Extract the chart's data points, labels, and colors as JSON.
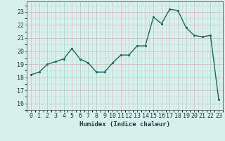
{
  "x": [
    0,
    1,
    2,
    3,
    4,
    5,
    6,
    7,
    8,
    9,
    10,
    11,
    12,
    13,
    14,
    15,
    16,
    17,
    18,
    19,
    20,
    21,
    22,
    23
  ],
  "y": [
    18.2,
    18.4,
    19.0,
    19.2,
    19.4,
    20.2,
    19.4,
    19.1,
    18.4,
    18.4,
    19.1,
    19.7,
    19.7,
    20.4,
    20.4,
    22.6,
    22.1,
    23.2,
    23.1,
    21.8,
    21.2,
    21.1,
    21.2,
    16.3
  ],
  "line_color": "#1a6b5a",
  "marker_color": "#1a6b5a",
  "bg_color": "#d8f0ec",
  "grid_color_major": "#b8d8d4",
  "grid_color_minor": "#cce8e4",
  "xlabel": "Humidex (Indice chaleur)",
  "ylim": [
    15.5,
    23.8
  ],
  "xlim": [
    -0.5,
    23.5
  ],
  "yticks": [
    16,
    17,
    18,
    19,
    20,
    21,
    22,
    23
  ],
  "xticks": [
    0,
    1,
    2,
    3,
    4,
    5,
    6,
    7,
    8,
    9,
    10,
    11,
    12,
    13,
    14,
    15,
    16,
    17,
    18,
    19,
    20,
    21,
    22,
    23
  ],
  "label_fontsize": 6.5,
  "tick_fontsize": 6,
  "line_width": 1.0,
  "marker_size": 2.5
}
